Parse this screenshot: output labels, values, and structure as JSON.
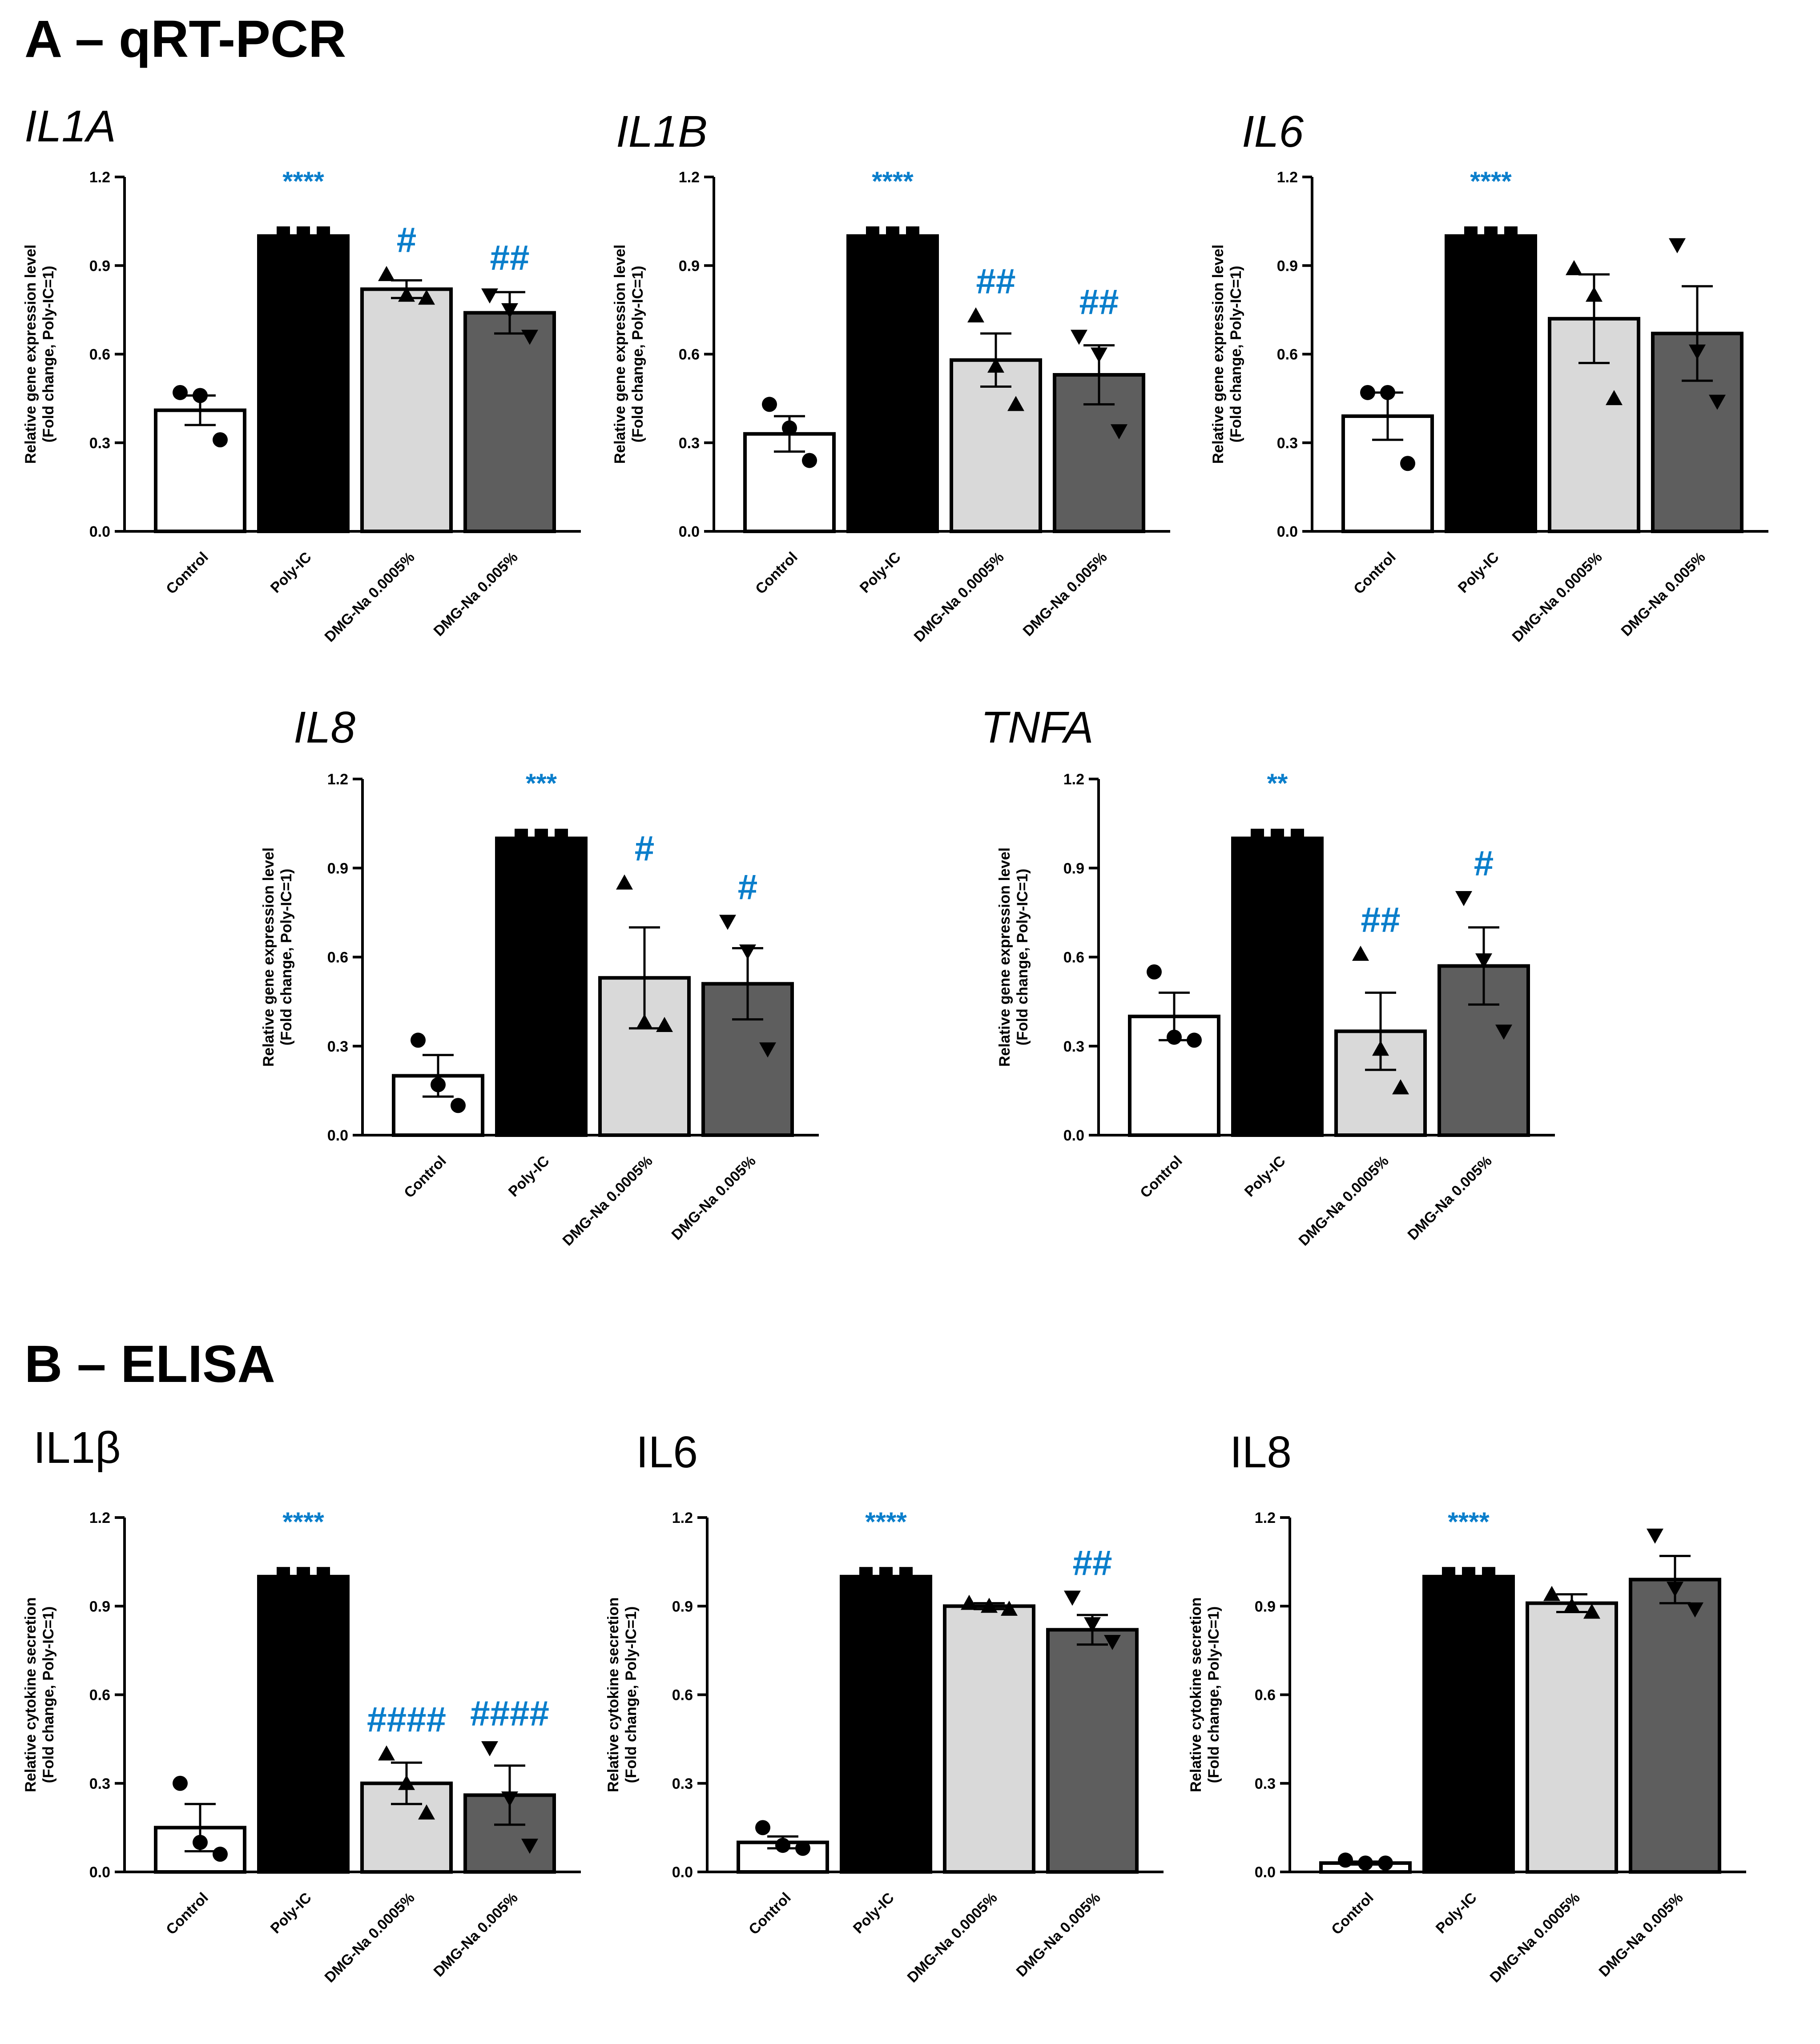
{
  "figure": {
    "section_a_title": "A – qRT-PCR",
    "section_b_title": "B – ELISA"
  },
  "colors": {
    "bar_fills": [
      "#ffffff",
      "#000000",
      "#d9d9d9",
      "#5e5e5e"
    ],
    "significance": "#0a7ecb",
    "axis": "#000000"
  },
  "chart_data": [
    {
      "type": "bar",
      "title": "IL1A",
      "title_italic": true,
      "categories": [
        "Control",
        "Poly-IC",
        "DMG-Na 0.0005%",
        "DMG-Na 0.005%"
      ],
      "values": [
        0.41,
        1.0,
        0.82,
        0.74
      ],
      "errors": [
        0.05,
        0.0,
        0.03,
        0.07
      ],
      "points": [
        [
          0.47,
          0.46,
          0.31
        ],
        [
          1.01,
          1.01,
          1.01
        ],
        [
          0.87,
          0.8,
          0.79
        ],
        [
          0.8,
          0.75,
          0.66
        ]
      ],
      "markers": [
        "circle",
        "square",
        "triangle-up",
        "triangle-down"
      ],
      "significance": [
        "",
        "****",
        "#",
        "##"
      ],
      "ylabel": [
        "Relative gene expression level",
        "(Fold change, Poly-IC=1)"
      ],
      "ylim": [
        0,
        1.2
      ],
      "yticks": [
        "0.0",
        "0.3",
        "0.6",
        "0.9",
        "1.2"
      ]
    },
    {
      "type": "bar",
      "title": "IL1B",
      "title_italic": true,
      "categories": [
        "Control",
        "Poly-IC",
        "DMG-Na 0.0005%",
        "DMG-Na 0.005%"
      ],
      "values": [
        0.33,
        1.0,
        0.58,
        0.53
      ],
      "errors": [
        0.06,
        0.0,
        0.09,
        0.1
      ],
      "points": [
        [
          0.43,
          0.35,
          0.24
        ],
        [
          1.01,
          1.01,
          1.01
        ],
        [
          0.73,
          0.56,
          0.43
        ],
        [
          0.66,
          0.6,
          0.34
        ]
      ],
      "markers": [
        "circle",
        "square",
        "triangle-up",
        "triangle-down"
      ],
      "significance": [
        "",
        "****",
        "##",
        "##"
      ],
      "ylabel": [
        "Relative gene expression level",
        "(Fold change, Poly-IC=1)"
      ],
      "ylim": [
        0,
        1.2
      ],
      "yticks": [
        "0.0",
        "0.3",
        "0.6",
        "0.9",
        "1.2"
      ]
    },
    {
      "type": "bar",
      "title": "IL6",
      "title_italic": true,
      "categories": [
        "Control",
        "Poly-IC",
        "DMG-Na 0.0005%",
        "DMG-Na 0.005%"
      ],
      "values": [
        0.39,
        1.0,
        0.72,
        0.67
      ],
      "errors": [
        0.08,
        0.0,
        0.15,
        0.16
      ],
      "points": [
        [
          0.47,
          0.47,
          0.23
        ],
        [
          1.01,
          1.01,
          1.01
        ],
        [
          0.89,
          0.8,
          0.45
        ],
        [
          0.97,
          0.61,
          0.44
        ]
      ],
      "markers": [
        "circle",
        "square",
        "triangle-up",
        "triangle-down"
      ],
      "significance": [
        "",
        "****",
        "",
        ""
      ],
      "ylabel": [
        "Relative gene expression level",
        "(Fold change, Poly-IC=1)"
      ],
      "ylim": [
        0,
        1.2
      ],
      "yticks": [
        "0.0",
        "0.3",
        "0.6",
        "0.9",
        "1.2"
      ]
    },
    {
      "type": "bar",
      "title": "IL8",
      "title_italic": true,
      "categories": [
        "Control",
        "Poly-IC",
        "DMG-Na 0.0005%",
        "DMG-Na 0.005%"
      ],
      "values": [
        0.2,
        1.0,
        0.53,
        0.51
      ],
      "errors": [
        0.07,
        0.0,
        0.17,
        0.12
      ],
      "points": [
        [
          0.32,
          0.17,
          0.1
        ],
        [
          1.01,
          1.01,
          1.01
        ],
        [
          0.85,
          0.38,
          0.37
        ],
        [
          0.72,
          0.62,
          0.29
        ]
      ],
      "markers": [
        "circle",
        "square",
        "triangle-up",
        "triangle-down"
      ],
      "significance": [
        "",
        "***",
        "#",
        "#"
      ],
      "ylabel": [
        "Relative gene expression level",
        "(Fold change, Poly-IC=1)"
      ],
      "ylim": [
        0,
        1.2
      ],
      "yticks": [
        "0.0",
        "0.3",
        "0.6",
        "0.9",
        "1.2"
      ]
    },
    {
      "type": "bar",
      "title": "TNFA",
      "title_italic": true,
      "categories": [
        "Control",
        "Poly-IC",
        "DMG-Na 0.0005%",
        "DMG-Na 0.005%"
      ],
      "values": [
        0.4,
        1.0,
        0.35,
        0.57
      ],
      "errors": [
        0.08,
        0.0,
        0.13,
        0.13
      ],
      "points": [
        [
          0.55,
          0.33,
          0.32
        ],
        [
          1.01,
          1.01,
          1.01
        ],
        [
          0.61,
          0.29,
          0.16
        ],
        [
          0.8,
          0.59,
          0.35
        ]
      ],
      "markers": [
        "circle",
        "square",
        "triangle-up",
        "triangle-down"
      ],
      "significance": [
        "",
        "**",
        "##",
        "#"
      ],
      "ylabel": [
        "Relative gene expression level",
        "(Fold change, Poly-IC=1)"
      ],
      "ylim": [
        0,
        1.2
      ],
      "yticks": [
        "0.0",
        "0.3",
        "0.6",
        "0.9",
        "1.2"
      ]
    },
    {
      "type": "bar",
      "title": "IL1β",
      "title_italic": false,
      "categories": [
        "Control",
        "Poly-IC",
        "DMG-Na 0.0005%",
        "DMG-Na 0.005%"
      ],
      "values": [
        0.15,
        1.0,
        0.3,
        0.26
      ],
      "errors": [
        0.08,
        0.0,
        0.07,
        0.1
      ],
      "points": [
        [
          0.3,
          0.1,
          0.06
        ],
        [
          1.01,
          1.01,
          1.01
        ],
        [
          0.4,
          0.3,
          0.2
        ],
        [
          0.42,
          0.25,
          0.09
        ]
      ],
      "markers": [
        "circle",
        "square",
        "triangle-up",
        "triangle-down"
      ],
      "significance": [
        "",
        "****",
        "####",
        "####"
      ],
      "ylabel": [
        "Relative cytokine secretion",
        "(Fold change, Poly-IC=1)"
      ],
      "ylim": [
        0,
        1.2
      ],
      "yticks": [
        "0.0",
        "0.3",
        "0.6",
        "0.9",
        "1.2"
      ]
    },
    {
      "type": "bar",
      "title": "IL6",
      "title_italic": false,
      "categories": [
        "Control",
        "Poly-IC",
        "DMG-Na 0.0005%",
        "DMG-Na 0.005%"
      ],
      "values": [
        0.1,
        1.0,
        0.9,
        0.82
      ],
      "errors": [
        0.02,
        0.0,
        0.01,
        0.05
      ],
      "points": [
        [
          0.15,
          0.09,
          0.08
        ],
        [
          1.01,
          1.01,
          1.01
        ],
        [
          0.91,
          0.9,
          0.89
        ],
        [
          0.93,
          0.84,
          0.78
        ]
      ],
      "markers": [
        "circle",
        "square",
        "triangle-up",
        "triangle-down"
      ],
      "significance": [
        "",
        "****",
        "",
        "##"
      ],
      "ylabel": [
        "Relative cytokine secretion",
        "(Fold change, Poly-IC=1)"
      ],
      "ylim": [
        0,
        1.2
      ],
      "yticks": [
        "0.0",
        "0.3",
        "0.6",
        "0.9",
        "1.2"
      ]
    },
    {
      "type": "bar",
      "title": "IL8",
      "title_italic": false,
      "categories": [
        "Control",
        "Poly-IC",
        "DMG-Na 0.0005%",
        "DMG-Na 0.005%"
      ],
      "values": [
        0.03,
        1.0,
        0.91,
        0.99
      ],
      "errors": [
        0.005,
        0.0,
        0.03,
        0.08
      ],
      "points": [
        [
          0.04,
          0.03,
          0.03
        ],
        [
          1.01,
          1.01,
          1.01
        ],
        [
          0.94,
          0.9,
          0.88
        ],
        [
          1.14,
          0.96,
          0.89
        ]
      ],
      "markers": [
        "circle",
        "square",
        "triangle-up",
        "triangle-down"
      ],
      "significance": [
        "",
        "****",
        "",
        ""
      ],
      "ylabel": [
        "Relative cytokine secretion",
        "(Fold change, Poly-IC=1)"
      ],
      "ylim": [
        0,
        1.2
      ],
      "yticks": [
        "0.0",
        "0.3",
        "0.6",
        "0.9",
        "1.2"
      ]
    }
  ]
}
